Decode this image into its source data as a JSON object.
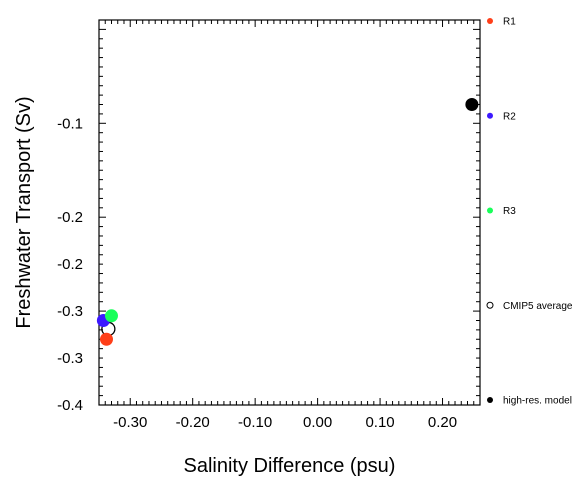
{
  "chart_data": {
    "type": "scatter",
    "xlabel": "Salinity Difference (psu)",
    "ylabel": "Freshwater Transport (Sv)",
    "xlim": [
      -0.35,
      0.26
    ],
    "ylim": [
      -0.4,
      0.01
    ],
    "x_ticks": [
      -0.3,
      -0.2,
      -0.1,
      0.0,
      0.1,
      0.2
    ],
    "x_tick_labels": [
      "-0.30",
      "-0.20",
      "-0.10",
      "0.00",
      "0.10",
      "0.20"
    ],
    "y_ticks": [
      -0.1,
      -0.2,
      -0.3,
      -0.4
    ],
    "y_tick_labels": [
      "-0.1",
      "-0.2",
      "-0.2",
      "-0.3",
      "-0.3",
      "-0.4"
    ],
    "y_label_values": [
      -0.1,
      -0.2,
      -0.25,
      -0.3,
      -0.35,
      -0.4
    ],
    "grid": false,
    "legend_placement": "right",
    "series": [
      {
        "name": "R1",
        "color": "#ff3f19",
        "marker": "filled-circle",
        "x": [
          -0.338
        ],
        "y": [
          -0.33
        ]
      },
      {
        "name": "R2",
        "color": "#3c19ff",
        "marker": "filled-circle",
        "x": [
          -0.343
        ],
        "y": [
          -0.31
        ]
      },
      {
        "name": "R3",
        "color": "#19ff5a",
        "marker": "filled-circle",
        "x": [
          -0.33
        ],
        "y": [
          -0.305
        ]
      },
      {
        "name": "CMIP5 average",
        "color": "#000000",
        "marker": "open-circle",
        "x": [
          -0.335
        ],
        "y": [
          -0.319
        ]
      },
      {
        "name": "high-res. model",
        "color": "#000000",
        "marker": "filled-circle",
        "x": [
          0.247
        ],
        "y": [
          -0.08
        ]
      }
    ]
  }
}
